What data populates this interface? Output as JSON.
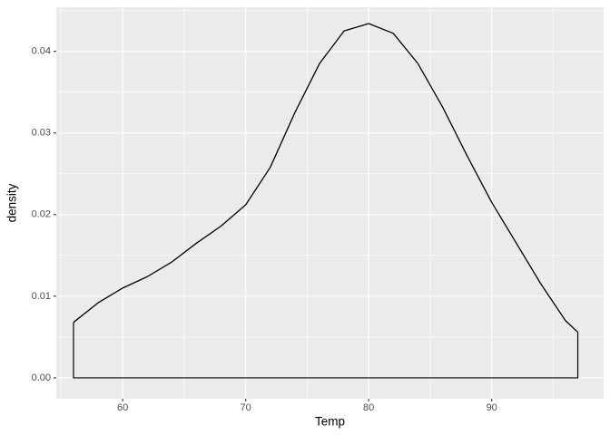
{
  "chart_data": {
    "type": "density",
    "x_label": "Temp",
    "y_label": "density",
    "x": [
      56,
      58,
      60,
      62,
      64,
      66,
      68,
      70,
      72,
      74,
      76,
      78,
      80,
      82,
      84,
      86,
      88,
      90,
      92,
      94,
      96,
      97
    ],
    "values": [
      0.0068,
      0.0092,
      0.011,
      0.0124,
      0.0142,
      0.0165,
      0.0186,
      0.0212,
      0.0258,
      0.0325,
      0.0385,
      0.0425,
      0.0434,
      0.0422,
      0.0385,
      0.0332,
      0.0272,
      0.0215,
      0.0165,
      0.0115,
      0.007,
      0.0056
    ],
    "color": "#000000",
    "xlim": [
      54.6,
      99.1
    ],
    "ylim": [
      -0.00256,
      0.0454
    ],
    "xticks": [
      60,
      70,
      80,
      90
    ],
    "yticks": [
      {
        "value": 0,
        "label": "0.00"
      },
      0.01,
      0.02,
      0.03,
      0.04
    ],
    "grid": true
  }
}
